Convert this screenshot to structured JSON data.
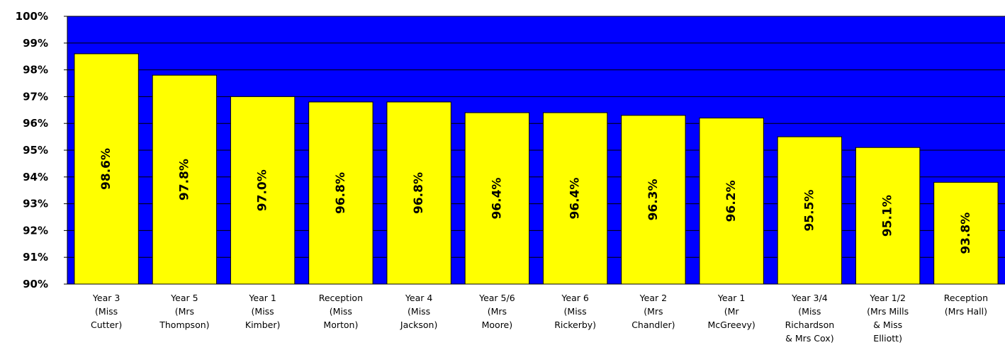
{
  "chart_data": {
    "type": "bar",
    "title": "",
    "xlabel": "",
    "ylabel": "",
    "ylim": [
      90,
      100
    ],
    "y_ticks": [
      "90%",
      "91%",
      "92%",
      "93%",
      "94%",
      "95%",
      "96%",
      "97%",
      "98%",
      "99%",
      "100%"
    ],
    "grid": true,
    "legend": "none",
    "colors": {
      "plot_background": "#0000ff",
      "bar_fill": "#ffff00",
      "bar_edge": "#000000",
      "gridline": "#000000"
    },
    "categories": [
      [
        "Year 3",
        "(Miss",
        "Cutter)"
      ],
      [
        "Year 5",
        "(Mrs",
        "Thompson)"
      ],
      [
        "Year 1",
        "(Miss",
        "Kimber)"
      ],
      [
        "Reception",
        "(Miss",
        "Morton)"
      ],
      [
        "Year 4",
        "(Miss",
        "Jackson)"
      ],
      [
        "Year 5/6",
        "(Mrs",
        "Moore)"
      ],
      [
        "Year 6",
        "(Miss",
        "Rickerby)"
      ],
      [
        "Year 2",
        "(Mrs",
        "Chandler)"
      ],
      [
        "Year 1",
        "(Mr",
        "McGreevy)"
      ],
      [
        "Year 3/4",
        "(Miss",
        "Richardson",
        "& Mrs Cox)"
      ],
      [
        "Year 1/2",
        "(Mrs Mills",
        "& Miss",
        "Elliott)"
      ],
      [
        "Reception",
        "(Mrs Hall)"
      ]
    ],
    "values": [
      98.6,
      97.8,
      97.0,
      96.8,
      96.8,
      96.4,
      96.4,
      96.3,
      96.2,
      95.5,
      95.1,
      93.8
    ],
    "data_labels": [
      "98.6%",
      "97.8%",
      "97.0%",
      "96.8%",
      "96.8%",
      "96.4%",
      "96.4%",
      "96.3%",
      "96.2%",
      "95.5%",
      "95.1%",
      "93.8%"
    ]
  }
}
